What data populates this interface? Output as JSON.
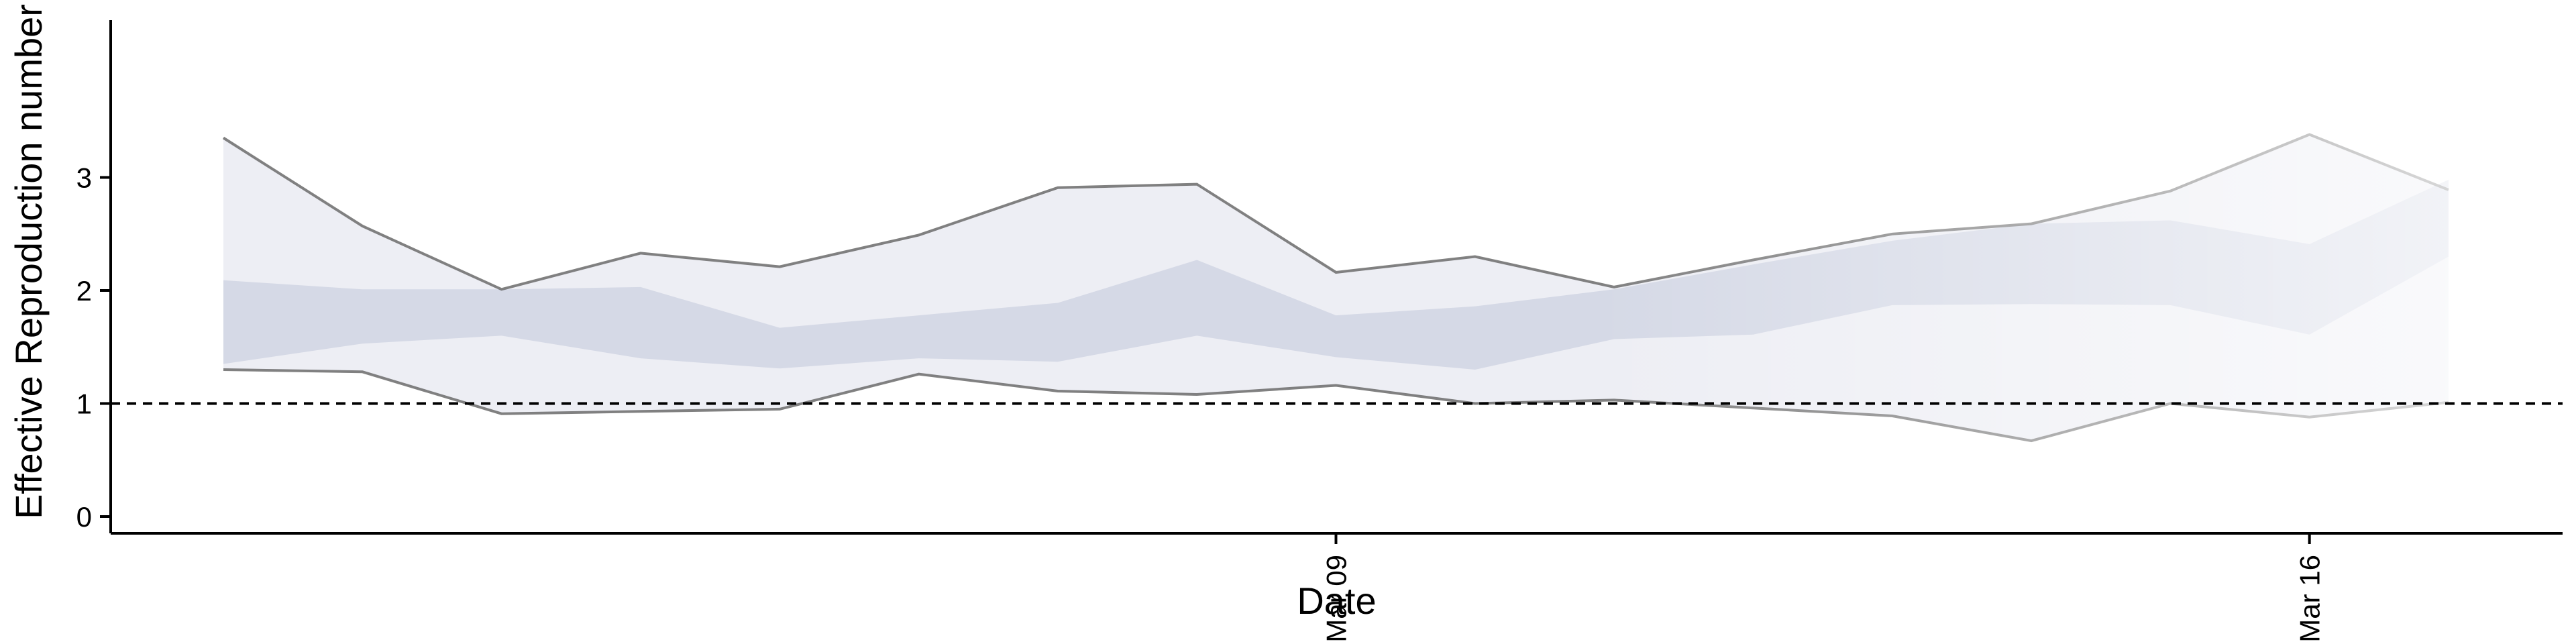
{
  "chart_data": {
    "type": "area",
    "xlabel": "Date",
    "ylabel": "Effective Reproduction number",
    "x": [
      "2020-03-01",
      "2020-03-02",
      "2020-03-03",
      "2020-03-04",
      "2020-03-05",
      "2020-03-06",
      "2020-03-07",
      "2020-03-08",
      "2020-03-09",
      "2020-03-10",
      "2020-03-11",
      "2020-03-12",
      "2020-03-13",
      "2020-03-14",
      "2020-03-15",
      "2020-03-16",
      "2020-03-17",
      "2020-03-18"
    ],
    "x_ticks": [
      {
        "date": "2020-03-09",
        "label": "Mar 09"
      },
      {
        "date": "2020-03-16",
        "label": "Mar 16"
      }
    ],
    "y_ticks": [
      0,
      1,
      2,
      3
    ],
    "ylim": [
      -0.15,
      3.55
    ],
    "reference_line": {
      "y": 1,
      "style": "dashed",
      "color": "#000000"
    },
    "outer_upper": [
      3.35,
      2.57,
      2.01,
      2.33,
      2.21,
      2.49,
      2.91,
      2.94,
      2.16,
      2.3,
      2.03,
      2.27,
      2.5,
      2.59,
      2.88,
      3.38,
      2.89,
      null
    ],
    "outer_lower": [
      1.3,
      1.28,
      0.91,
      0.93,
      0.95,
      1.26,
      1.11,
      1.08,
      1.16,
      1.0,
      1.03,
      0.96,
      0.89,
      0.67,
      1.0,
      0.88,
      1.01,
      null
    ],
    "inner_upper": [
      2.09,
      2.01,
      2.01,
      2.03,
      1.67,
      1.78,
      1.89,
      2.27,
      1.78,
      1.86,
      2.01,
      2.23,
      2.44,
      2.59,
      2.62,
      2.41,
      2.98,
      null
    ],
    "inner_lower": [
      1.35,
      1.53,
      1.6,
      1.4,
      1.31,
      1.4,
      1.37,
      1.6,
      1.41,
      1.3,
      1.57,
      1.61,
      1.87,
      1.88,
      1.87,
      1.61,
      2.3,
      null
    ],
    "colors": {
      "band_fill": "#c7cbdd",
      "line": "#6b6b6b",
      "axis": "#000000"
    }
  }
}
